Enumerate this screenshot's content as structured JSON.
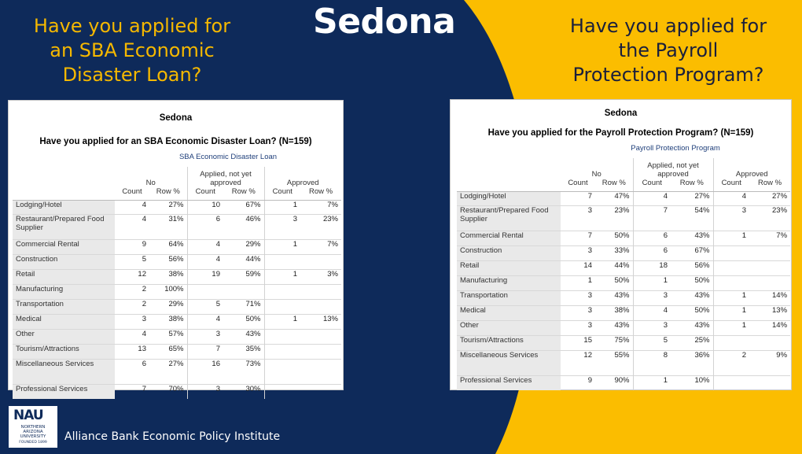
{
  "page": {
    "title": "Sedona",
    "question_left": [
      "Have you applied for",
      "an SBA Economic",
      "Disaster Loan?"
    ],
    "question_right": [
      "Have you applied for",
      "the Payroll",
      "Protection Program?"
    ],
    "footer": "Alliance Bank Economic Policy Institute",
    "logo": {
      "mark": "NAU",
      "lines": [
        "NORTHERN",
        "ARIZONA",
        "UNIVERSITY",
        "FOUNDED 1899"
      ]
    },
    "colors": {
      "navy": "#0e2a5a",
      "yellow": "#fbbd00",
      "gold_text": "#f5b800"
    }
  },
  "sba_table": {
    "title": "Sedona",
    "subtitle": "Have you applied for an SBA Economic Disaster Loan? (N=159)",
    "group_label": "SBA Economic Disaster Loan",
    "categories": [
      "No",
      "Applied, not yet approved",
      "Approved"
    ],
    "col_headers": [
      "Count",
      "Row %",
      "Count",
      "Row %",
      "Count",
      "Row %"
    ],
    "rows": [
      {
        "label": "Lodging/Hotel",
        "cells": [
          "4",
          "27%",
          "10",
          "67%",
          "1",
          "7%"
        ]
      },
      {
        "label": "Restaurant/Prepared Food Supplier",
        "cells": [
          "4",
          "31%",
          "6",
          "46%",
          "3",
          "23%"
        ]
      },
      {
        "label": "Commercial Rental",
        "cells": [
          "9",
          "64%",
          "4",
          "29%",
          "1",
          "7%"
        ]
      },
      {
        "label": "Construction",
        "cells": [
          "5",
          "56%",
          "4",
          "44%",
          "",
          ""
        ]
      },
      {
        "label": "Retail",
        "cells": [
          "12",
          "38%",
          "19",
          "59%",
          "1",
          "3%"
        ]
      },
      {
        "label": "Manufacturing",
        "cells": [
          "2",
          "100%",
          "",
          "",
          "",
          ""
        ]
      },
      {
        "label": "Transportation",
        "cells": [
          "2",
          "29%",
          "5",
          "71%",
          "",
          ""
        ]
      },
      {
        "label": "Medical",
        "cells": [
          "3",
          "38%",
          "4",
          "50%",
          "1",
          "13%"
        ]
      },
      {
        "label": "Other",
        "cells": [
          "4",
          "57%",
          "3",
          "43%",
          "",
          ""
        ]
      },
      {
        "label": "Tourism/Attractions",
        "cells": [
          "13",
          "65%",
          "7",
          "35%",
          "",
          ""
        ]
      },
      {
        "label": "Miscellaneous Services",
        "cells": [
          "6",
          "27%",
          "16",
          "73%",
          "",
          ""
        ]
      },
      {
        "label": "Professional Services",
        "cells": [
          "7",
          "70%",
          "3",
          "30%",
          "",
          ""
        ]
      }
    ]
  },
  "ppp_table": {
    "title": "Sedona",
    "subtitle": "Have you applied for the Payroll Protection Program? (N=159)",
    "group_label": "Payroll Protection Program",
    "categories": [
      "No",
      "Applied, not yet approved",
      "Approved"
    ],
    "col_headers": [
      "Count",
      "Row %",
      "Count",
      "Row %",
      "Count",
      "Row %"
    ],
    "rows": [
      {
        "label": "Lodging/Hotel",
        "cells": [
          "7",
          "47%",
          "4",
          "27%",
          "4",
          "27%"
        ]
      },
      {
        "label": "Restaurant/Prepared Food Supplier",
        "cells": [
          "3",
          "23%",
          "7",
          "54%",
          "3",
          "23%"
        ]
      },
      {
        "label": "Commercial Rental",
        "cells": [
          "7",
          "50%",
          "6",
          "43%",
          "1",
          "7%"
        ]
      },
      {
        "label": "Construction",
        "cells": [
          "3",
          "33%",
          "6",
          "67%",
          "",
          ""
        ]
      },
      {
        "label": "Retail",
        "cells": [
          "14",
          "44%",
          "18",
          "56%",
          "",
          ""
        ]
      },
      {
        "label": "Manufacturing",
        "cells": [
          "1",
          "50%",
          "1",
          "50%",
          "",
          ""
        ]
      },
      {
        "label": "Transportation",
        "cells": [
          "3",
          "43%",
          "3",
          "43%",
          "1",
          "14%"
        ]
      },
      {
        "label": "Medical",
        "cells": [
          "3",
          "38%",
          "4",
          "50%",
          "1",
          "13%"
        ]
      },
      {
        "label": "Other",
        "cells": [
          "3",
          "43%",
          "3",
          "43%",
          "1",
          "14%"
        ]
      },
      {
        "label": "Tourism/Attractions",
        "cells": [
          "15",
          "75%",
          "5",
          "25%",
          "",
          ""
        ]
      },
      {
        "label": "Miscellaneous Services",
        "cells": [
          "12",
          "55%",
          "8",
          "36%",
          "2",
          "9%"
        ]
      },
      {
        "label": "Professional Services",
        "cells": [
          "9",
          "90%",
          "1",
          "10%",
          "",
          ""
        ]
      }
    ]
  }
}
